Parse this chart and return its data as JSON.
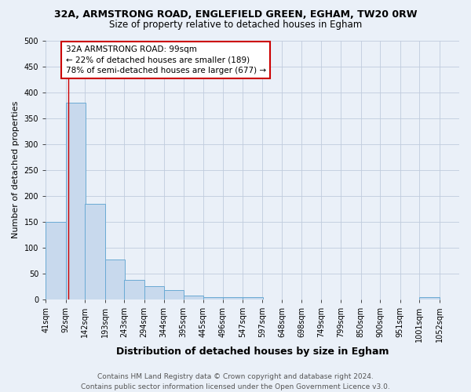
{
  "title": "32A, ARMSTRONG ROAD, ENGLEFIELD GREEN, EGHAM, TW20 0RW",
  "subtitle": "Size of property relative to detached houses in Egham",
  "xlabel": "Distribution of detached houses by size in Egham",
  "ylabel": "Number of detached properties",
  "footer_line1": "Contains HM Land Registry data © Crown copyright and database right 2024.",
  "footer_line2": "Contains public sector information licensed under the Open Government Licence v3.0.",
  "bin_edges": [
    41,
    92,
    142,
    193,
    243,
    294,
    344,
    395,
    445,
    496,
    547,
    597,
    648,
    698,
    749,
    799,
    850,
    900,
    951,
    1001,
    1052
  ],
  "bin_labels": [
    "41sqm",
    "92sqm",
    "142sqm",
    "193sqm",
    "243sqm",
    "294sqm",
    "344sqm",
    "395sqm",
    "445sqm",
    "496sqm",
    "547sqm",
    "597sqm",
    "648sqm",
    "698sqm",
    "749sqm",
    "799sqm",
    "850sqm",
    "900sqm",
    "951sqm",
    "1001sqm",
    "1052sqm"
  ],
  "bar_heights": [
    150,
    380,
    185,
    77,
    38,
    25,
    18,
    8,
    5,
    5,
    5,
    0,
    0,
    0,
    0,
    0,
    0,
    0,
    0,
    5,
    0
  ],
  "bar_color": "#c8d9ed",
  "bar_edge_color": "#6aaad4",
  "red_line_x": 99,
  "annotation_text": "32A ARMSTRONG ROAD: 99sqm\n← 22% of detached houses are smaller (189)\n78% of semi-detached houses are larger (677) →",
  "annotation_box_color": "#ffffff",
  "annotation_box_edge": "#cc0000",
  "red_line_color": "#cc0000",
  "ylim": [
    0,
    500
  ],
  "yticks": [
    0,
    50,
    100,
    150,
    200,
    250,
    300,
    350,
    400,
    450,
    500
  ],
  "grid_color": "#c0ccdd",
  "background_color": "#eaf0f8",
  "title_fontsize": 9,
  "subtitle_fontsize": 8.5,
  "axis_label_fontsize": 8,
  "tick_fontsize": 7,
  "annotation_fontsize": 7.5,
  "footer_fontsize": 6.5,
  "ylabel_fontsize": 8
}
